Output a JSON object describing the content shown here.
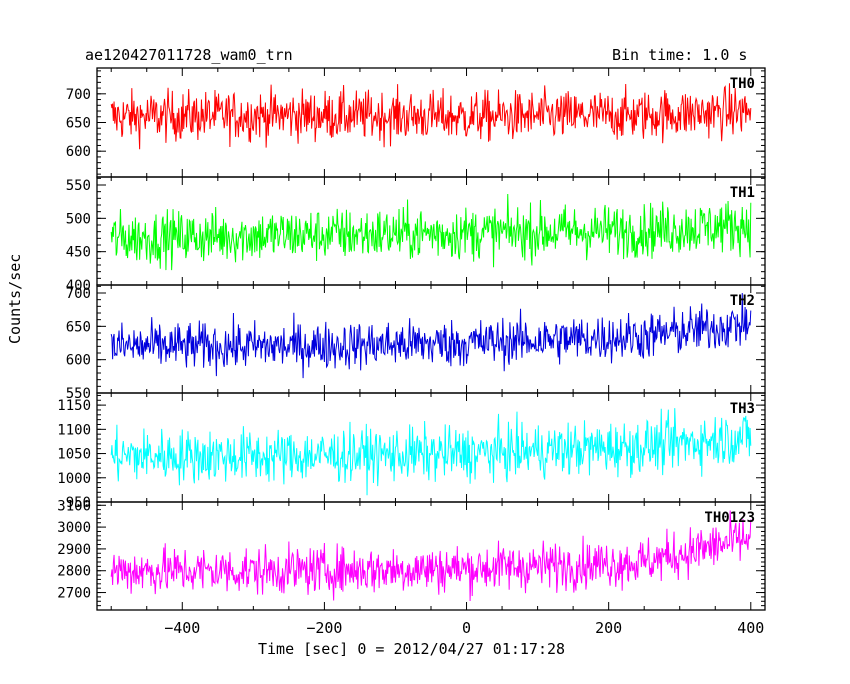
{
  "header": {
    "title": "ae120427011728_wam0_trn",
    "bin_time": "Bin time: 1.0 s"
  },
  "chart_data": {
    "type": "line",
    "title": "ae120427011728_wam0_trn",
    "subtitle": "Bin time: 1.0 s",
    "xlabel": "Time [sec] 0 = 2012/04/27 01:17:28",
    "ylabel": "Counts/sec",
    "xlim": [
      -520,
      420
    ],
    "xticks": [
      -400,
      -200,
      0,
      200,
      400
    ],
    "x_range_data": [
      -500,
      400
    ],
    "panels": [
      {
        "name": "TH0",
        "color": "#ff0000",
        "ylim": [
          555,
          745
        ],
        "yticks": [
          600,
          650,
          700
        ],
        "trend": [
          [
            -500,
            660
          ],
          [
            -250,
            663
          ],
          [
            0,
            660
          ],
          [
            250,
            663
          ],
          [
            400,
            670
          ]
        ],
        "spread": 22,
        "approx_range": [
          565,
          740
        ]
      },
      {
        "name": "TH1",
        "color": "#00ff00",
        "ylim": [
          400,
          562
        ],
        "yticks": [
          400,
          450,
          500,
          550
        ],
        "trend": [
          [
            -500,
            470
          ],
          [
            -250,
            475
          ],
          [
            0,
            478
          ],
          [
            250,
            482
          ],
          [
            400,
            490
          ]
        ],
        "spread": 20,
        "approx_range": [
          405,
          560
        ]
      },
      {
        "name": "TH2",
        "color": "#0000dd",
        "ylim": [
          550,
          712
        ],
        "yticks": [
          550,
          600,
          650,
          700
        ],
        "trend": [
          [
            -500,
            620
          ],
          [
            -250,
            620
          ],
          [
            0,
            625
          ],
          [
            250,
            635
          ],
          [
            400,
            655
          ]
        ],
        "spread": 18,
        "approx_range": [
          555,
          710
        ]
      },
      {
        "name": "TH3",
        "color": "#00ffff",
        "ylim": [
          950,
          1175
        ],
        "yticks": [
          950,
          1000,
          1050,
          1100,
          1150
        ],
        "trend": [
          [
            -500,
            1045
          ],
          [
            -250,
            1045
          ],
          [
            0,
            1050
          ],
          [
            250,
            1065
          ],
          [
            400,
            1085
          ]
        ],
        "spread": 28,
        "approx_range": [
          955,
          1175
        ]
      },
      {
        "name": "TH0123",
        "color": "#ff00ff",
        "ylim": [
          2620,
          3115
        ],
        "yticks": [
          2700,
          2800,
          2900,
          3000,
          3100
        ],
        "trend": [
          [
            -500,
            2800
          ],
          [
            -250,
            2800
          ],
          [
            0,
            2810
          ],
          [
            250,
            2840
          ],
          [
            400,
            2950
          ]
        ],
        "spread": 55,
        "approx_range": [
          2630,
          3090
        ]
      }
    ]
  }
}
